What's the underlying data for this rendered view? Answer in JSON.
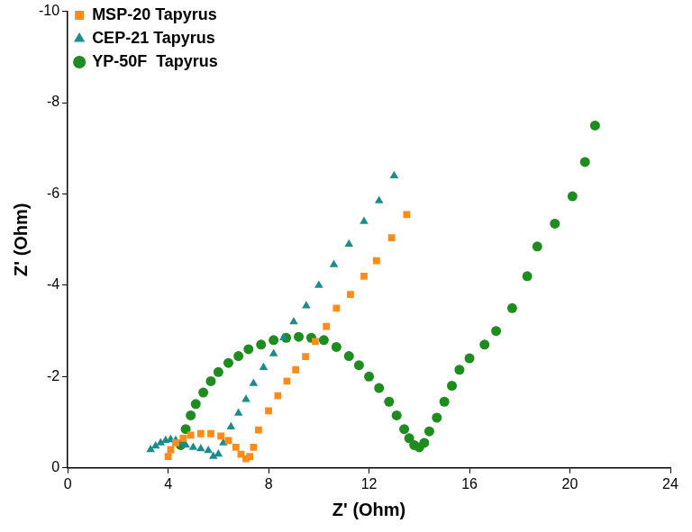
{
  "chart_data": {
    "type": "scatter",
    "x_label": "Z' (Ohm)",
    "y_label": "Z' (Ohm)",
    "xlim": [
      0,
      24
    ],
    "xticks": [
      0,
      4,
      8,
      12,
      16,
      20,
      24
    ],
    "ylim": [
      0,
      -10
    ],
    "yticks": [
      0,
      -2,
      -4,
      -6,
      -8,
      -10
    ],
    "grid": false,
    "legend": "top-left",
    "series": [
      {
        "name": "MSP-20 Tapyrus",
        "color": "#ff8c1a",
        "marker": "square",
        "x": [
          4.0,
          4.1,
          4.3,
          4.6,
          4.9,
          5.3,
          5.7,
          6.1,
          6.4,
          6.7,
          6.9,
          7.1,
          7.25,
          7.4,
          7.6,
          8.0,
          8.37,
          8.73,
          9.08,
          9.47,
          9.86,
          10.3,
          10.7,
          11.26,
          11.8,
          12.3,
          12.9,
          13.5
        ],
        "values": [
          -0.25,
          -0.4,
          -0.55,
          -0.65,
          -0.72,
          -0.75,
          -0.75,
          -0.7,
          -0.6,
          -0.45,
          -0.3,
          -0.2,
          -0.25,
          -0.45,
          -0.83,
          -1.25,
          -1.58,
          -1.9,
          -2.15,
          -2.44,
          -2.77,
          -3.1,
          -3.5,
          -3.8,
          -4.2,
          -4.54,
          -5.04,
          -5.55
        ]
      },
      {
        "name": "CEP-21 Tapyrus",
        "color": "#1a8c8c",
        "marker": "triangle",
        "x": [
          3.3,
          3.5,
          3.7,
          3.9,
          4.1,
          4.3,
          4.5,
          4.7,
          5.0,
          5.3,
          5.6,
          5.8,
          6.0,
          6.2,
          6.5,
          6.8,
          7.1,
          7.4,
          7.8,
          8.2,
          8.6,
          9.0,
          9.5,
          10.0,
          10.6,
          11.2,
          11.8,
          12.4,
          13.0
        ],
        "values": [
          -0.4,
          -0.48,
          -0.55,
          -0.6,
          -0.62,
          -0.6,
          -0.55,
          -0.5,
          -0.45,
          -0.42,
          -0.38,
          -0.25,
          -0.3,
          -0.55,
          -0.9,
          -1.2,
          -1.5,
          -1.85,
          -2.2,
          -2.5,
          -2.85,
          -3.2,
          -3.55,
          -4.0,
          -4.45,
          -4.9,
          -5.4,
          -5.85,
          -6.4
        ]
      },
      {
        "name": "YP-50F  Tapyrus",
        "color": "#1e8c1e",
        "marker": "circle",
        "x": [
          4.5,
          4.7,
          4.9,
          5.1,
          5.4,
          5.7,
          6.0,
          6.4,
          6.8,
          7.2,
          7.7,
          8.2,
          8.7,
          9.2,
          9.7,
          10.2,
          10.7,
          11.2,
          11.6,
          12.0,
          12.4,
          12.8,
          13.1,
          13.4,
          13.6,
          13.8,
          14.0,
          14.2,
          14.4,
          14.7,
          15.0,
          15.3,
          15.6,
          16.0,
          16.6,
          17.06,
          17.7,
          18.3,
          18.7,
          19.4,
          20.1,
          20.6,
          21.0
        ],
        "values": [
          -0.5,
          -0.85,
          -1.15,
          -1.4,
          -1.65,
          -1.9,
          -2.1,
          -2.3,
          -2.45,
          -2.6,
          -2.7,
          -2.8,
          -2.85,
          -2.87,
          -2.85,
          -2.8,
          -2.65,
          -2.45,
          -2.25,
          -2.0,
          -1.75,
          -1.45,
          -1.15,
          -0.85,
          -0.65,
          -0.5,
          -0.45,
          -0.55,
          -0.8,
          -1.1,
          -1.45,
          -1.8,
          -2.15,
          -2.4,
          -2.7,
          -3.0,
          -3.5,
          -4.2,
          -4.85,
          -5.35,
          -5.95,
          -6.7,
          -7.5
        ]
      }
    ]
  }
}
